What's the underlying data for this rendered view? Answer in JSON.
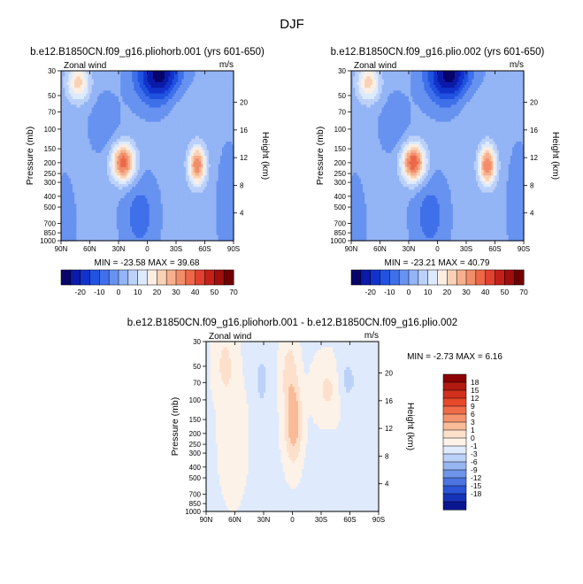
{
  "figure": {
    "title": "DJF"
  },
  "chart_data": [
    {
      "type": "heatmap",
      "title": "b.e12.B1850CN.f09_g16.pliohorb.001 (yrs 601-650)",
      "left_label": "Zonal wind",
      "units": "m/s",
      "xlabel": "",
      "ylabel": "Pressure (mb)",
      "ylabel_right": "Height (km)",
      "x_ticks": [
        "90N",
        "60N",
        "30N",
        "0",
        "30S",
        "60S",
        "90S"
      ],
      "y_ticks": [
        "30",
        "50",
        "70",
        "100",
        "150",
        "200",
        "250",
        "300",
        "400",
        "500",
        "700",
        "850",
        "1000"
      ],
      "height_ticks": [
        "20",
        "16",
        "12",
        "8",
        "4"
      ],
      "stats": "MIN = -23.58   MAX = 39.68",
      "min": -23.58,
      "max": 39.68,
      "colorbar": {
        "labels": [
          "-20",
          "-10",
          "0",
          "10",
          "20",
          "30",
          "40",
          "50",
          "70"
        ],
        "levels": [
          -25,
          -20,
          -15,
          -10,
          -5,
          0,
          5,
          10,
          15,
          20,
          25,
          30,
          35,
          40,
          45,
          50,
          60,
          70
        ],
        "colors": [
          "#08046a",
          "#0b1aa8",
          "#1232cc",
          "#2152e0",
          "#3f70ea",
          "#6792f0",
          "#93b4f5",
          "#bcd1fa",
          "#ddeafd",
          "#fdeee2",
          "#f9d2b6",
          "#f6b08e",
          "#f28d6a",
          "#ec6848",
          "#e04130",
          "#c4201a",
          "#a10e0e",
          "#700000"
        ]
      }
    },
    {
      "type": "heatmap",
      "title": "b.e12.B1850CN.f09_g16.plio.002 (yrs 601-650)",
      "left_label": "Zonal wind",
      "units": "m/s",
      "xlabel": "",
      "ylabel": "Pressure (mb)",
      "ylabel_right": "Height (km)",
      "x_ticks": [
        "90N",
        "60N",
        "30N",
        "0",
        "30S",
        "60S",
        "90S"
      ],
      "y_ticks": [
        "30",
        "50",
        "70",
        "100",
        "150",
        "200",
        "250",
        "300",
        "400",
        "500",
        "700",
        "850",
        "1000"
      ],
      "height_ticks": [
        "20",
        "16",
        "12",
        "8",
        "4"
      ],
      "stats": "MIN = -23.21   MAX = 40.79",
      "min": -23.21,
      "max": 40.79,
      "colorbar": {
        "labels": [
          "-20",
          "-10",
          "0",
          "10",
          "20",
          "30",
          "40",
          "50",
          "70"
        ],
        "levels": [
          -25,
          -20,
          -15,
          -10,
          -5,
          0,
          5,
          10,
          15,
          20,
          25,
          30,
          35,
          40,
          45,
          50,
          60,
          70
        ],
        "colors": [
          "#08046a",
          "#0b1aa8",
          "#1232cc",
          "#2152e0",
          "#3f70ea",
          "#6792f0",
          "#93b4f5",
          "#bcd1fa",
          "#ddeafd",
          "#fdeee2",
          "#f9d2b6",
          "#f6b08e",
          "#f28d6a",
          "#ec6848",
          "#e04130",
          "#c4201a",
          "#a10e0e",
          "#700000"
        ]
      }
    },
    {
      "type": "heatmap",
      "title": "b.e12.B1850CN.f09_g16.pliohorb.001 - b.e12.B1850CN.f09_g16.plio.002",
      "left_label": "Zonal wind",
      "units": "m/s",
      "xlabel": "",
      "ylabel": "Pressure (mb)",
      "ylabel_right": "Height (km)",
      "x_ticks": [
        "90N",
        "60N",
        "30N",
        "0",
        "30S",
        "60S",
        "90S"
      ],
      "y_ticks": [
        "30",
        "50",
        "70",
        "100",
        "150",
        "200",
        "250",
        "300",
        "400",
        "500",
        "700",
        "850",
        "1000"
      ],
      "height_ticks": [
        "20",
        "16",
        "12",
        "8",
        "4"
      ],
      "stats": "MIN = -2.73   MAX = 6.16",
      "min": -2.73,
      "max": 6.16,
      "colorbar": {
        "labels": [
          "18",
          "15",
          "12",
          "9",
          "6",
          "3",
          "1",
          "0",
          "-1",
          "-3",
          "-6",
          "-9",
          "-12",
          "-15",
          "-18"
        ],
        "colors": [
          "#8b0000",
          "#b01a10",
          "#d0301c",
          "#e8482a",
          "#f06c48",
          "#f5946e",
          "#f9bb98",
          "#fde0cc",
          "#fdf2e8",
          "#dfeafc",
          "#bcd1f8",
          "#98b6f2",
          "#6e94ea",
          "#4c74e2",
          "#2c54d6",
          "#1632b8",
          "#0a1690"
        ]
      }
    }
  ]
}
